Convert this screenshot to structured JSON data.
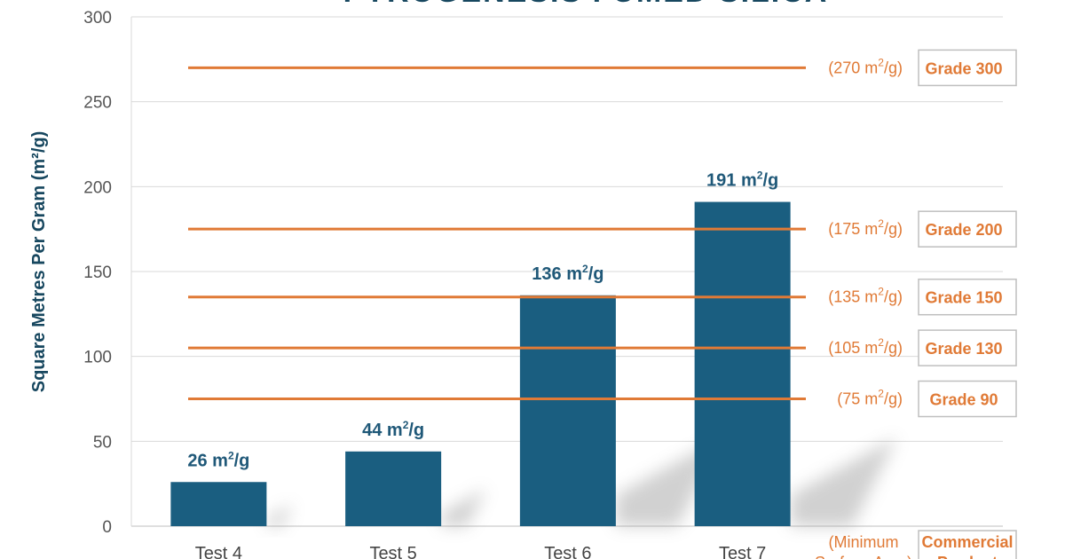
{
  "chart_data": {
    "type": "bar",
    "title": "PYROGENESIS FUMED SILICA",
    "ylabel": "Square Metres Per Gram (m²/g)",
    "ylim": [
      0,
      300
    ],
    "yticks": [
      0,
      50,
      100,
      150,
      200,
      250,
      300
    ],
    "grid": true,
    "categories": [
      "Test 4",
      "Test 5",
      "Test 6",
      "Test 7"
    ],
    "values": [
      26,
      44,
      136,
      191
    ],
    "value_labels": [
      "26 m²/g",
      "44 m²/g",
      "136 m²/g",
      "191 m²/g"
    ],
    "bar_color": "#1a5e80",
    "reference_color": "#e07a36",
    "reference_lines": [
      {
        "value": 270,
        "label": "(270 m²/g)",
        "grade": "Grade 300"
      },
      {
        "value": 175,
        "label": "(175 m²/g)",
        "grade": "Grade 200"
      },
      {
        "value": 135,
        "label": "(135 m²/g)",
        "grade": "Grade 150"
      },
      {
        "value": 105,
        "label": "(105 m²/g)",
        "grade": "Grade 130"
      },
      {
        "value": 75,
        "label": "(75 m²/g)",
        "grade": "Grade 90"
      }
    ],
    "footer_note": "(Minimum Surface Area)",
    "footer_grade": "Commercial Product"
  }
}
